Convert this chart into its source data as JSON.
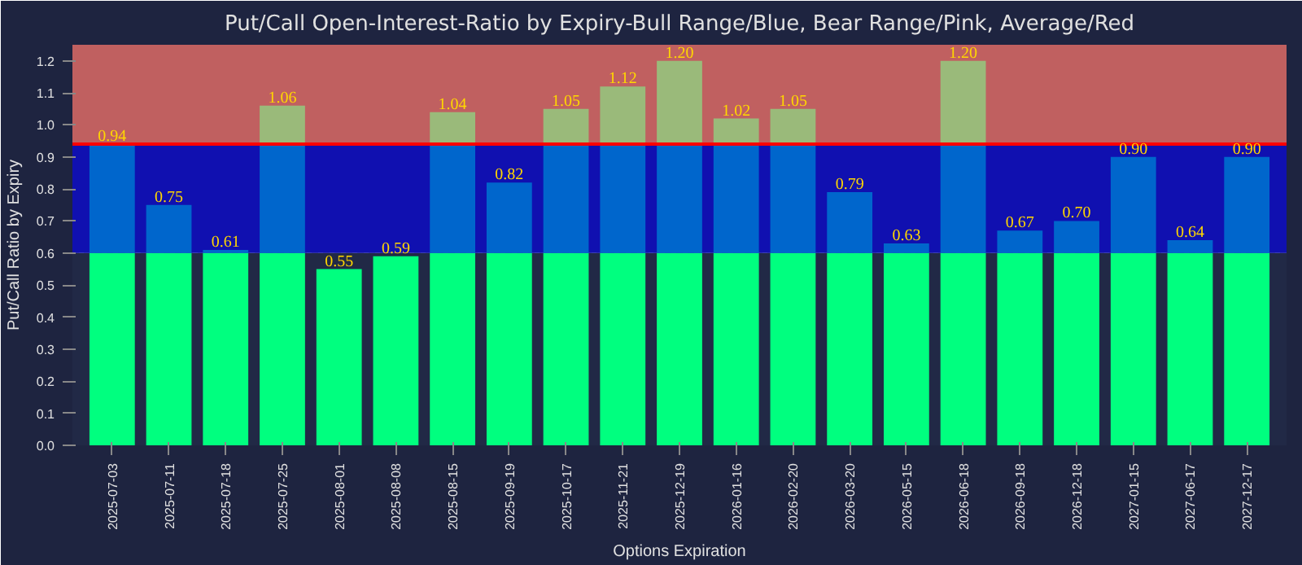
{
  "chart_data": {
    "type": "bar",
    "stacked": true,
    "title": "Put/Call Open-Interest-Ratio by Expiry-Bull Range/Blue, Bear Range/Pink, Average/Red",
    "xlabel": "Options Expiration",
    "ylabel": "Put/Call Ratio by Expiry",
    "categories": [
      "2025-07-03",
      "2025-07-11",
      "2025-07-18",
      "2025-07-25",
      "2025-08-01",
      "2025-08-08",
      "2025-08-15",
      "2025-09-19",
      "2025-10-17",
      "2025-11-21",
      "2025-12-19",
      "2026-01-16",
      "2026-02-20",
      "2026-03-20",
      "2026-05-15",
      "2026-06-18",
      "2026-09-18",
      "2026-12-18",
      "2027-01-15",
      "2027-06-17",
      "2027-12-17"
    ],
    "series": [
      {
        "color": "#00ff7f",
        "values": [
          0.6,
          0.6,
          0.6,
          0.6,
          0.55,
          0.59,
          0.6,
          0.6,
          0.6,
          0.6,
          0.6,
          0.6,
          0.6,
          0.6,
          0.6,
          0.6,
          0.6,
          0.6,
          0.6,
          0.6,
          0.6
        ]
      },
      {
        "color": "#0066cc",
        "values": [
          0.34,
          0.15,
          0.01,
          0.34,
          0,
          0,
          0.34,
          0.22,
          0.34,
          0.34,
          0.34,
          0.34,
          0.34,
          0.19,
          0.03,
          0.34,
          0.07,
          0.1,
          0.3,
          0.04,
          0.3
        ]
      },
      {
        "color": "#9aba7a",
        "values": [
          0,
          0,
          0,
          0.12,
          0,
          0,
          0.1,
          0,
          0.11,
          0.18,
          0.26,
          0.08,
          0.11,
          0,
          0,
          0.26,
          0,
          0,
          0,
          0,
          0
        ]
      }
    ],
    "totals": [
      "0.94",
      "0.75",
      "0.61",
      "1.06",
      "0.55",
      "0.59",
      "1.04",
      "0.82",
      "1.05",
      "1.12",
      "1.20",
      "1.02",
      "1.05",
      "0.79",
      "0.63",
      "1.20",
      "0.67",
      "0.70",
      "0.90",
      "0.64",
      "0.90"
    ],
    "ylim": [
      0,
      1.25
    ],
    "yticks": [
      {
        "value": 0,
        "label": "0.0"
      },
      {
        "value": 0.1,
        "label": "0.1"
      },
      {
        "value": 0.2,
        "label": "0.2"
      },
      {
        "value": 0.3,
        "label": "0.3"
      },
      {
        "value": 0.4,
        "label": "0.4"
      },
      {
        "value": 0.5,
        "label": "0.5"
      },
      {
        "value": 0.6,
        "label": "0.6"
      },
      {
        "value": 0.7,
        "label": "0.7"
      },
      {
        "value": 0.8,
        "label": "0.8"
      },
      {
        "value": 0.9,
        "label": "0.9"
      },
      {
        "value": 1.0,
        "label": "1.0"
      },
      {
        "value": 1.1,
        "label": "1.1"
      },
      {
        "value": 1.2,
        "label": "1.2"
      }
    ],
    "bands": [
      {
        "axis": "y",
        "from": 0,
        "to": 0.6,
        "color": "#212946"
      },
      {
        "axis": "y",
        "from": 0.6,
        "to": 0.94,
        "color": "#1010b0"
      },
      {
        "axis": "y",
        "from": 0.94,
        "to": 1.25,
        "color": "#c06060"
      }
    ],
    "ref_lines": [
      {
        "axis": "y",
        "value": 0.94,
        "color": "#ff0000"
      }
    ],
    "grid": true
  }
}
